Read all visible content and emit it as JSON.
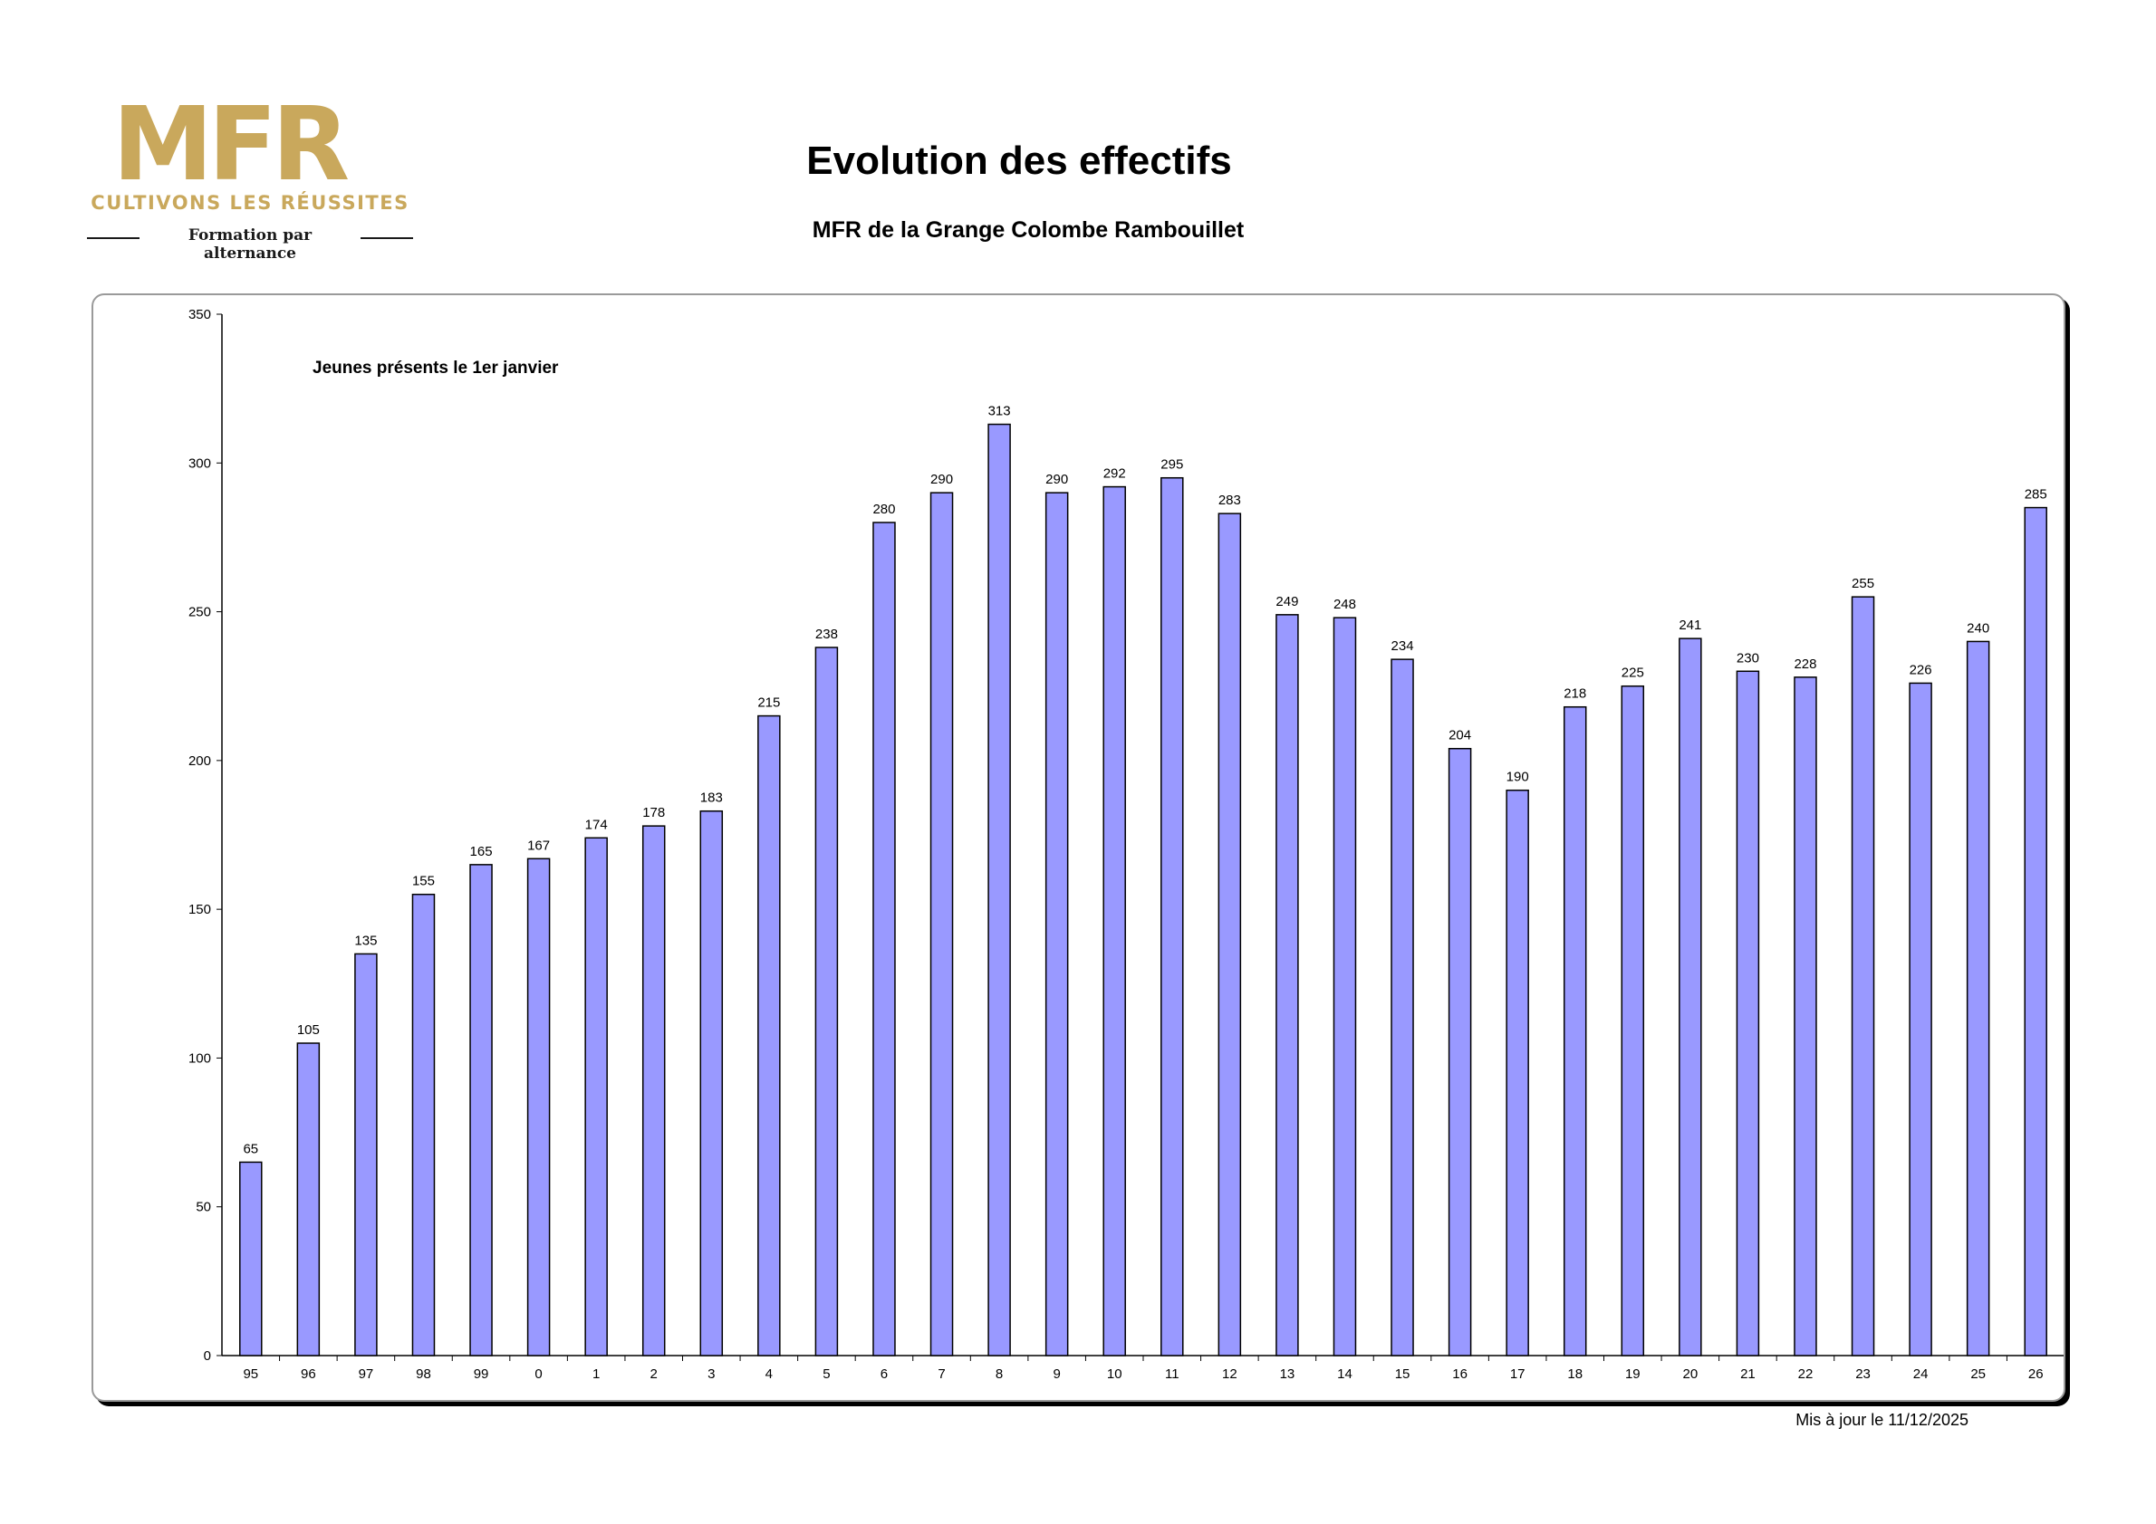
{
  "logo": {
    "brand": "MFR",
    "tagline": "CULTIVONS LES RÉUSSITES",
    "subline": "Formation par alternance",
    "color": "#c9a85c"
  },
  "title": "Evolution des effectifs",
  "subtitle": "MFR de la Grange Colombe Rambouillet",
  "footer": {
    "updated": "Mis à jour le 11/12/2025"
  },
  "chart_data": {
    "type": "bar",
    "series_label": "Jeunes présents le 1er janvier",
    "categories": [
      "95",
      "96",
      "97",
      "98",
      "99",
      "0",
      "1",
      "2",
      "3",
      "4",
      "5",
      "6",
      "7",
      "8",
      "9",
      "10",
      "11",
      "12",
      "13",
      "14",
      "15",
      "16",
      "17",
      "18",
      "19",
      "20",
      "21",
      "22",
      "23",
      "24",
      "25",
      "26"
    ],
    "values": [
      65,
      105,
      135,
      155,
      165,
      167,
      174,
      178,
      183,
      215,
      238,
      280,
      290,
      313,
      290,
      292,
      295,
      283,
      249,
      248,
      234,
      204,
      190,
      218,
      225,
      241,
      230,
      228,
      255,
      226,
      240,
      285
    ],
    "ylim": [
      0,
      350
    ],
    "yticks": [
      0,
      50,
      100,
      150,
      200,
      250,
      300,
      350
    ],
    "bar_color": "#9999ff",
    "xlabel": "",
    "ylabel": "",
    "grid": false
  }
}
